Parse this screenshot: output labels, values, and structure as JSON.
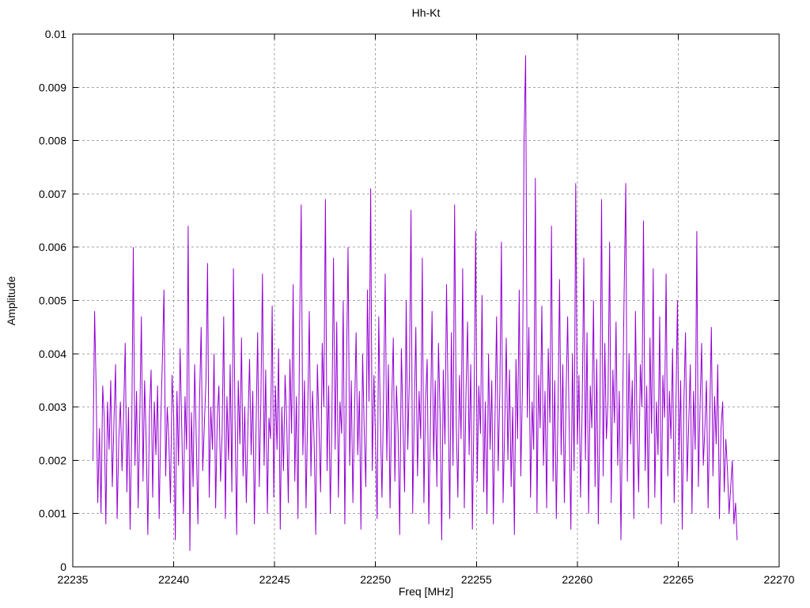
{
  "page": {
    "background": "#ffffff"
  },
  "chart_data": {
    "type": "line",
    "title": "Hh-Kt",
    "xlabel": "Freq [MHz]",
    "ylabel": "Amplitude",
    "xlim": [
      22235,
      22270
    ],
    "ylim": [
      0,
      0.01
    ],
    "x_ticks": [
      22235,
      22240,
      22245,
      22250,
      22255,
      22260,
      22265,
      22270
    ],
    "x_tick_labels": [
      "22235",
      "22240",
      "22245",
      "22250",
      "22255",
      "22260",
      "22265",
      "22270"
    ],
    "y_ticks": [
      0,
      0.001,
      0.002,
      0.003,
      0.004,
      0.005,
      0.006,
      0.007,
      0.008,
      0.009,
      0.01
    ],
    "y_tick_labels": [
      "0",
      "0.001",
      "0.002",
      "0.003",
      "0.004",
      "0.005",
      "0.006",
      "0.007",
      "0.008",
      "0.009",
      "0.01"
    ],
    "grid": true,
    "grid_style": "dashed",
    "legend": "none",
    "line_color": "#9400d3",
    "grid_color": "#a6a6a6",
    "axis_color": "#000000",
    "notable_peaks": [
      {
        "x": 22257.4,
        "y": 0.0096
      },
      {
        "x": 22257.3,
        "y": 0.008
      },
      {
        "x": 22257.9,
        "y": 0.0073
      },
      {
        "x": 22262.4,
        "y": 0.0072
      },
      {
        "x": 22259.9,
        "y": 0.0072
      },
      {
        "x": 22249.8,
        "y": 0.0071
      },
      {
        "x": 22247.5,
        "y": 0.0069
      },
      {
        "x": 22261.2,
        "y": 0.0069
      },
      {
        "x": 22246.4,
        "y": 0.0068
      },
      {
        "x": 22253.9,
        "y": 0.0068
      },
      {
        "x": 22240.7,
        "y": 0.0064
      },
      {
        "x": 22238.0,
        "y": 0.006
      }
    ],
    "series": [
      {
        "name": "Hh-Kt",
        "x_start": 22236.0,
        "x_step": 0.08,
        "amplitude_scale": 0.0001,
        "values": [
          20,
          48,
          33,
          12,
          26,
          10,
          34,
          28,
          8,
          31,
          22,
          35,
          15,
          27,
          38,
          9,
          24,
          31,
          18,
          29,
          42,
          14,
          30,
          7,
          25,
          60,
          19,
          33,
          11,
          28,
          47,
          16,
          35,
          23,
          6,
          29,
          37,
          13,
          31,
          21,
          34,
          9,
          27,
          39,
          52,
          17,
          30,
          24,
          12,
          36,
          28,
          5,
          33,
          19,
          41,
          26,
          10,
          32,
          22,
          64,
          3,
          29,
          15,
          38,
          24,
          8,
          31,
          45,
          18,
          27,
          35,
          57,
          13,
          30,
          22,
          40,
          11,
          28,
          34,
          16,
          25,
          47,
          9,
          32,
          20,
          38,
          14,
          56,
          28,
          6,
          35,
          23,
          43,
          17,
          30,
          12,
          27,
          39,
          21,
          33,
          8,
          26,
          44,
          15,
          31,
          55,
          19,
          37,
          10,
          28,
          24,
          49,
          13,
          34,
          22,
          41,
          7,
          30,
          18,
          36,
          27,
          12,
          39,
          25,
          53,
          16,
          32,
          9,
          45,
          68,
          21,
          35,
          11,
          29,
          48,
          17,
          33,
          23,
          6,
          38,
          26,
          14,
          42,
          30,
          69,
          18,
          34,
          10,
          28,
          58,
          22,
          46,
          13,
          31,
          25,
          50,
          8,
          37,
          60,
          19,
          35,
          12,
          29,
          44,
          21,
          33,
          7,
          40,
          26,
          15,
          52,
          31,
          71,
          18,
          36,
          24,
          9,
          47,
          28,
          13,
          32,
          55,
          20,
          38,
          11,
          30,
          43,
          16,
          34,
          25,
          6,
          41,
          27,
          14,
          50,
          22,
          36,
          67,
          10,
          29,
          45,
          17,
          33,
          24,
          58,
          12,
          31,
          39,
          8,
          26,
          48,
          20,
          35,
          15,
          42,
          28,
          5,
          37,
          23,
          53,
          30,
          9,
          44,
          19,
          68,
          27,
          13,
          36,
          24,
          56,
          11,
          32,
          46,
          21,
          38,
          7,
          29,
          63,
          16,
          34,
          25,
          51,
          14,
          31,
          10,
          40,
          22,
          35,
          8,
          28,
          47,
          18,
          33,
          61,
          12,
          26,
          43,
          20,
          37,
          15,
          30,
          6,
          39,
          24,
          52,
          17,
          34,
          80,
          96,
          28,
          45,
          13,
          31,
          22,
          73,
          10,
          36,
          26,
          49,
          19,
          33,
          11,
          41,
          27,
          64,
          16,
          35,
          9,
          29,
          54,
          21,
          38,
          12,
          32,
          47,
          25,
          7,
          40,
          18,
          72,
          23,
          36,
          13,
          30,
          58,
          20,
          44,
          10,
          34,
          26,
          50,
          15,
          39,
          8,
          28,
          69,
          17,
          42,
          24,
          31,
          61,
          12,
          37,
          27,
          46,
          19,
          33,
          5,
          29,
          52,
          72,
          16,
          40,
          23,
          35,
          9,
          48,
          26,
          14,
          38,
          30,
          65,
          18,
          34,
          11,
          43,
          25,
          56,
          13,
          31,
          21,
          47,
          8,
          36,
          28,
          55,
          17,
          33,
          24,
          41,
          12,
          29,
          50,
          20,
          35,
          7,
          31,
          44,
          16,
          27,
          38,
          10,
          33,
          22,
          63,
          15,
          30,
          42,
          19,
          26,
          35,
          11,
          28,
          45,
          17,
          32,
          23,
          38,
          9,
          26,
          31,
          14,
          24,
          18,
          10,
          15,
          20,
          8,
          12,
          5
        ]
      }
    ]
  }
}
